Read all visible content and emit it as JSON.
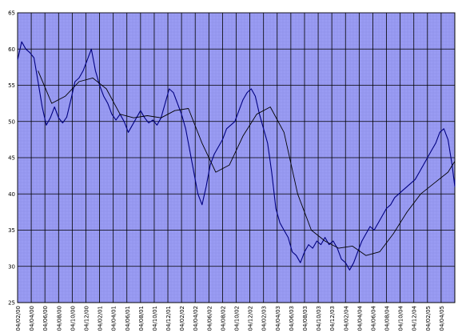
{
  "chart_data": {
    "type": "line",
    "title": "",
    "xlabel": "",
    "ylabel": "",
    "ylim": [
      25,
      65
    ],
    "y_ticks": [
      "25",
      "30",
      "35",
      "40",
      "45",
      "50",
      "55",
      "60",
      "65"
    ],
    "x_ticks": [
      "04/02/00",
      "04/04/00",
      "04/06/00",
      "04/08/00",
      "04/10/00",
      "04/12/00",
      "04/02/01",
      "04/04/01",
      "04/06/01",
      "04/08/01",
      "04/10/01",
      "04/12/01",
      "04/02/02",
      "04/04/02",
      "04/06/02",
      "04/08/02",
      "04/10/02",
      "04/12/02",
      "04/02/03",
      "04/04/03",
      "04/06/03",
      "04/08/03",
      "04/10/03",
      "04/12/03",
      "04/02/04",
      "04/04/04",
      "04/06/04",
      "04/08/04",
      "04/10/04",
      "04/12/04",
      "04/02/05",
      "04/04/05"
    ],
    "grid": true,
    "plot_background": "#9a9cf3",
    "series": [
      {
        "color": "#000080",
        "x": [
          0,
          0.3,
          0.6,
          0.9,
          1.2,
          1.5,
          1.8,
          2.1,
          2.4,
          2.7,
          3.0,
          3.3,
          3.6,
          3.9,
          4.2,
          4.5,
          4.8,
          5.1,
          5.4,
          5.7,
          6.0,
          6.3,
          6.6,
          6.9,
          7.2,
          7.5,
          7.8,
          8.1,
          8.4,
          8.7,
          9.0,
          9.3,
          9.6,
          9.9,
          10.2,
          10.5,
          10.8,
          11.1,
          11.4,
          11.7,
          12.0,
          12.3,
          12.6,
          12.9,
          13.2,
          13.5,
          13.8,
          14.1,
          14.4,
          14.7,
          15.0,
          15.3,
          15.6,
          15.9,
          16.2,
          16.5,
          16.8,
          17.1,
          17.4,
          17.7,
          18.0,
          18.3,
          18.6,
          18.9,
          19.2,
          19.5,
          19.8,
          20.1,
          20.4,
          20.7,
          21.0,
          21.3,
          21.6,
          21.9,
          22.2,
          22.5,
          22.8,
          23.1,
          23.4,
          23.7,
          24.0,
          24.3,
          24.6,
          24.9,
          25.2,
          25.5,
          25.8,
          26.1,
          26.4,
          26.7,
          27.0,
          27.3,
          27.6,
          27.9,
          28.2,
          28.5,
          28.8,
          29.1,
          29.4,
          29.7,
          30.0,
          30.3,
          30.6,
          30.9,
          31.2,
          31.5,
          31.8,
          32.1,
          32.4
        ],
        "values": [
          58.5,
          61,
          60,
          59.5,
          58.8,
          55.5,
          52,
          49.5,
          50.5,
          52,
          50.5,
          49.8,
          50.6,
          53,
          55.5,
          56,
          57,
          58.5,
          60,
          57,
          55,
          53.5,
          52.5,
          51,
          50.2,
          51,
          50,
          48.5,
          49.5,
          50.5,
          51.5,
          50.5,
          49.8,
          50.2,
          49.5,
          50.5,
          52.5,
          54.5,
          54,
          52.5,
          51,
          49,
          46,
          43,
          40,
          38.5,
          41,
          44,
          45.5,
          46.5,
          47.5,
          49,
          49.5,
          50,
          51.5,
          53,
          54,
          54.5,
          53.5,
          51,
          49,
          47,
          43,
          38,
          36,
          35,
          34,
          32,
          31.5,
          30.5,
          32,
          33,
          32.5,
          33.5,
          33,
          34,
          33,
          33.5,
          32.5,
          31,
          30.5,
          29.5,
          30.5,
          32,
          33.5,
          34.5,
          35.5,
          35,
          36,
          37,
          38,
          38.5,
          39.5,
          40,
          40.5,
          41,
          41.5,
          42,
          43,
          44,
          45,
          46,
          47,
          48.5,
          49,
          47.5,
          44,
          41,
          42
        ]
      },
      {
        "color": "#000000",
        "x": [
          1.5,
          2.5,
          3.5,
          4.5,
          5.5,
          6.5,
          7.5,
          8.5,
          9.5,
          10.5,
          11.5,
          12.5,
          13.5,
          14.5,
          15.5,
          16.5,
          17.5,
          18.5,
          19.5,
          20.5,
          21.5,
          22.5,
          23.5,
          24.5,
          25.5,
          26.5,
          27.5,
          28.5,
          29.5,
          30.5,
          31.5,
          32.4
        ],
        "values": [
          57,
          52.5,
          53.5,
          55.5,
          56,
          54.5,
          51,
          50.5,
          50.8,
          50.5,
          51.5,
          51.8,
          47,
          43,
          44,
          48,
          51,
          52,
          48.5,
          40,
          35,
          33.5,
          32.5,
          32.8,
          31.5,
          32,
          34.5,
          37.5,
          40,
          41.5,
          43,
          44.5
        ]
      }
    ]
  }
}
